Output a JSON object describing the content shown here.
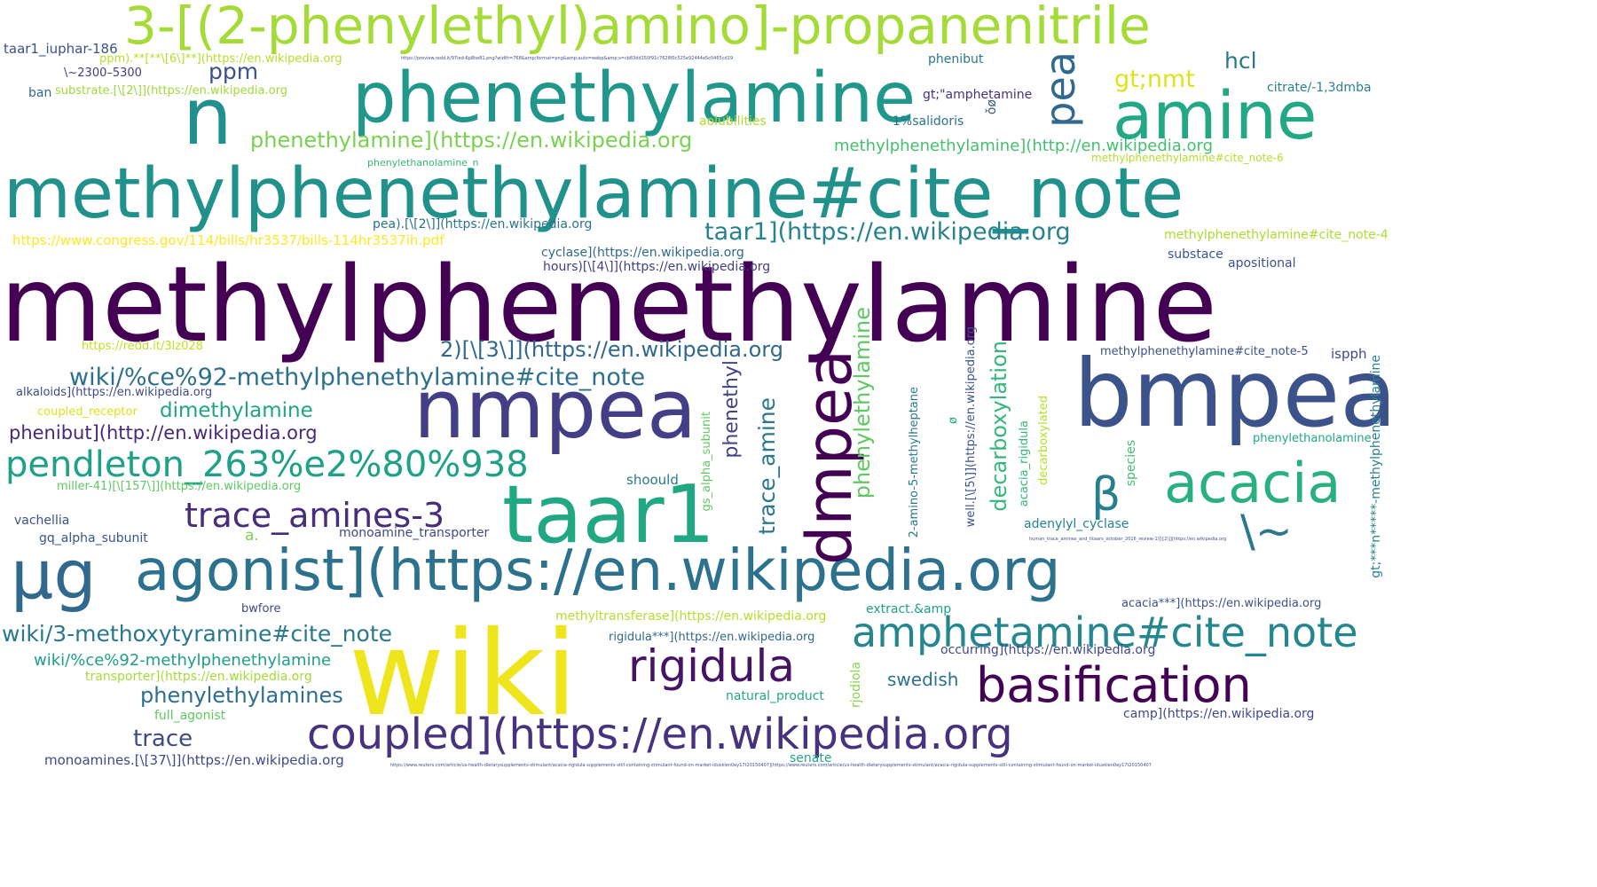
{
  "words": [
    {
      "text": "methylphenethylamine",
      "color": "#440154"
    },
    {
      "text": "wiki",
      "color": "#efe51c"
    },
    {
      "text": "methylphenethylamine#cite_note",
      "color": "#21918c"
    },
    {
      "text": "3-[(2-phenylethyl)amino]-propanenitrile",
      "color": "#a5db36"
    },
    {
      "text": "phenethylamine",
      "color": "#1f988b"
    },
    {
      "text": "nmpea",
      "color": "#433e85"
    },
    {
      "text": "bmpea",
      "color": "#3b528b"
    },
    {
      "text": "taar1",
      "color": "#22a785"
    },
    {
      "text": "agonist](https://en.wikipedia.org",
      "color": "#2c728e"
    },
    {
      "text": "n",
      "color": "#218f8d"
    },
    {
      "text": "amine",
      "color": "#22a884"
    },
    {
      "text": "dmpea",
      "color": "#440154"
    },
    {
      "text": "µg",
      "color": "#31688e"
    },
    {
      "text": "acacia",
      "color": "#2ab07f"
    },
    {
      "text": "coupled](https://en.wikipedia.org",
      "color": "#46327e"
    },
    {
      "text": "basification",
      "color": "#440154"
    },
    {
      "text": "amphetamine#cite_note",
      "color": "#24868e"
    },
    {
      "text": "rigidula",
      "color": "#471365"
    },
    {
      "text": "pea",
      "color": "#31688e"
    },
    {
      "text": "pendleton_263%e2%80%938",
      "color": "#1fa187"
    },
    {
      "text": "β",
      "color": "#277f8e"
    },
    {
      "text": "\\~",
      "color": "#2a788e"
    },
    {
      "text": "trace_amines-3",
      "color": "#472d7b"
    },
    {
      "text": "wiki/3-methoxytyramine#cite_note",
      "color": "#2a788e"
    },
    {
      "text": "wiki/%ce%92-methylphenethylamine#cite_note",
      "color": "#2d708e"
    },
    {
      "text": "taar1](https://en.wikipedia.org",
      "color": "#26828e"
    },
    {
      "text": "2)[\\[3\\]](https://en.wikipedia.org",
      "color": "#31688e"
    },
    {
      "text": "phenethylamine](https://en.wikipedia.org",
      "color": "#7ad151"
    },
    {
      "text": "phenylethylamines",
      "color": "#2e6e8e"
    },
    {
      "text": "trace",
      "color": "#3e4a89"
    },
    {
      "text": "dimethylamine",
      "color": "#20a486"
    },
    {
      "text": "phenibut](http://en.wikipedia.org",
      "color": "#482878"
    },
    {
      "text": "swedish",
      "color": "#2c728e"
    },
    {
      "text": "hcl",
      "color": "#2a788e"
    },
    {
      "text": "gt;nmt",
      "color": "#dde318"
    },
    {
      "text": "ppm",
      "color": "#3b528b"
    },
    {
      "text": "trace_amine",
      "color": "#2a788e"
    },
    {
      "text": "phenylethylamine",
      "color": "#5ec962"
    },
    {
      "text": "decarboxylation",
      "color": "#35b779"
    },
    {
      "text": "phenethyl",
      "color": "#414487"
    },
    {
      "text": "methylphenethylamine](http://en.wikipedia.org",
      "color": "#44bf70"
    },
    {
      "text": "wiki/%ce%92-methylphenethylamine",
      "color": "#1f9e89"
    },
    {
      "text": "monoamines.[\\[37\\]](https://en.wikipedia.org",
      "color": "#3e4989"
    },
    {
      "text": "https://www.congress.gov/114/bills/hr3537/bills-114hr3537ih.pdf",
      "color": "#fde725"
    },
    {
      "text": "taar1_iuphar-186",
      "color": "#3b528b"
    },
    {
      "text": "gt;\"amphetamine",
      "color": "#46327e"
    },
    {
      "text": "methylphenethylamine#cite_note-6",
      "color": "#b5de2b"
    },
    {
      "text": "methylphenethylamine#cite_note-4",
      "color": "#addc30"
    },
    {
      "text": "methylphenethylamine#cite_note-5",
      "color": "#3b528b"
    },
    {
      "text": "pea).[\\[2\\]](https://en.wikipedia.org",
      "color": "#2c728e"
    },
    {
      "text": "cyclase](https://en.wikipedia.org",
      "color": "#31688e"
    },
    {
      "text": "hours)[\\[4\\]](https://en.wikipedia.org",
      "color": "#433e85"
    },
    {
      "text": "substace",
      "color": "#39568c"
    },
    {
      "text": "apositional",
      "color": "#3b528b"
    },
    {
      "text": "ispph",
      "color": "#3e4989"
    },
    {
      "text": "phenibut",
      "color": "#2a788e"
    },
    {
      "text": "aolubilities",
      "color": "#addc30"
    },
    {
      "text": "1%salidoris",
      "color": "#2c728e"
    },
    {
      "text": "citrate/-1,3dmba",
      "color": "#26828e"
    },
    {
      "text": "substrate.[\\[2\\]](https://en.wikipedia.org",
      "color": "#a0da39"
    },
    {
      "text": "ban",
      "color": "#31688e"
    },
    {
      "text": "\\~2300–5300",
      "color": "#433e85"
    },
    {
      "text": "ppm).**[**\\[6\\]**](https://en.wikipedia.org",
      "color": "#b8de29"
    },
    {
      "text": "https://redd.it/3lz028",
      "color": "#c2df23"
    },
    {
      "text": "alkaloids](https://en.wikipedia.org",
      "color": "#3e4a89"
    },
    {
      "text": "coupled_receptor",
      "color": "#dde318"
    },
    {
      "text": "miller-41)[\\[157\\]](https://en.wikipedia.org",
      "color": "#5ec962"
    },
    {
      "text": "vachellia",
      "color": "#3b528b"
    },
    {
      "text": "gq_alpha_subunit",
      "color": "#39568c"
    },
    {
      "text": "a.",
      "color": "#7ad151"
    },
    {
      "text": "monoamine_transporter",
      "color": "#3e4989"
    },
    {
      "text": "shoould",
      "color": "#2a788e"
    },
    {
      "text": "gs_alpha_subunit",
      "color": "#5ec962"
    },
    {
      "text": "adenylyl_cyclase",
      "color": "#26828e"
    },
    {
      "text": "acacia_rigidula",
      "color": "#35b779"
    },
    {
      "text": "decarboxylated",
      "color": "#b5de2b"
    },
    {
      "text": "species",
      "color": "#44bf70"
    },
    {
      "text": "phenylethanolamine",
      "color": "#22a884"
    },
    {
      "text": "2-amino-5-methylheptane",
      "color": "#2a788e"
    },
    {
      "text": "well.[\\[5\\]](https://en.wikipedia.org",
      "color": "#3b528b"
    },
    {
      "text": "gt;***n*****-methylphenethylamine",
      "color": "#26828e"
    },
    {
      "text": "acacia***](https://en.wikipedia.org",
      "color": "#3b528b"
    },
    {
      "text": "bwfore",
      "color": "#3e4a89"
    },
    {
      "text": "extract.&amp",
      "color": "#1fa187"
    },
    {
      "text": "methyltransferase](https://en.wikipedia.org",
      "color": "#b5de2b"
    },
    {
      "text": "rigidula***](https://en.wikipedia.org",
      "color": "#31688e"
    },
    {
      "text": "occurring](https://en.wikipedia.org",
      "color": "#3e4989"
    },
    {
      "text": "transporter](https://en.wikipedia.org",
      "color": "#a5db36"
    },
    {
      "text": "full_agonist",
      "color": "#5ec962"
    },
    {
      "text": "natural_product",
      "color": "#22a884"
    },
    {
      "text": "rjodiola",
      "color": "#86d549"
    },
    {
      "text": "camp](https://en.wikipedia.org",
      "color": "#3e4989"
    },
    {
      "text": "senate",
      "color": "#22a884"
    },
    {
      "text": "https://www.reuters.com/article/us-health-dietarysupplements-stimulant/acacia-rigidula-supplements-still-containing-stimulant-found-on-market-idusklen0ey17t20150407](https://www.reuters.com/article/us-health-dietarysupplements-stimulant/acacia-rigidula-supplements-still-containing-stimulant-found-on-market-idusklen0ey17t20150407",
      "color": "#3b528b"
    },
    {
      "text": "https://preview.redd.it/97ied-6p8tw81.png?width=768&amp;format=png&amp;auto=webp&amp;s=cb83dd150f91c7628f0c525e92444e5c0465cd19",
      "color": "#3b528b"
    },
    {
      "text": "human_trace_amines_and_htaars_october_2016_review-1)[\\[2\\]](https://en.wikipedia.org",
      "color": "#3b528b"
    },
    {
      "text": "phenylethanolamine_n",
      "color": "#35b779"
    },
    {
      "text": "ǒø",
      "color": "#3b528b"
    },
    {
      "text": "ø",
      "color": "#22a884"
    }
  ]
}
